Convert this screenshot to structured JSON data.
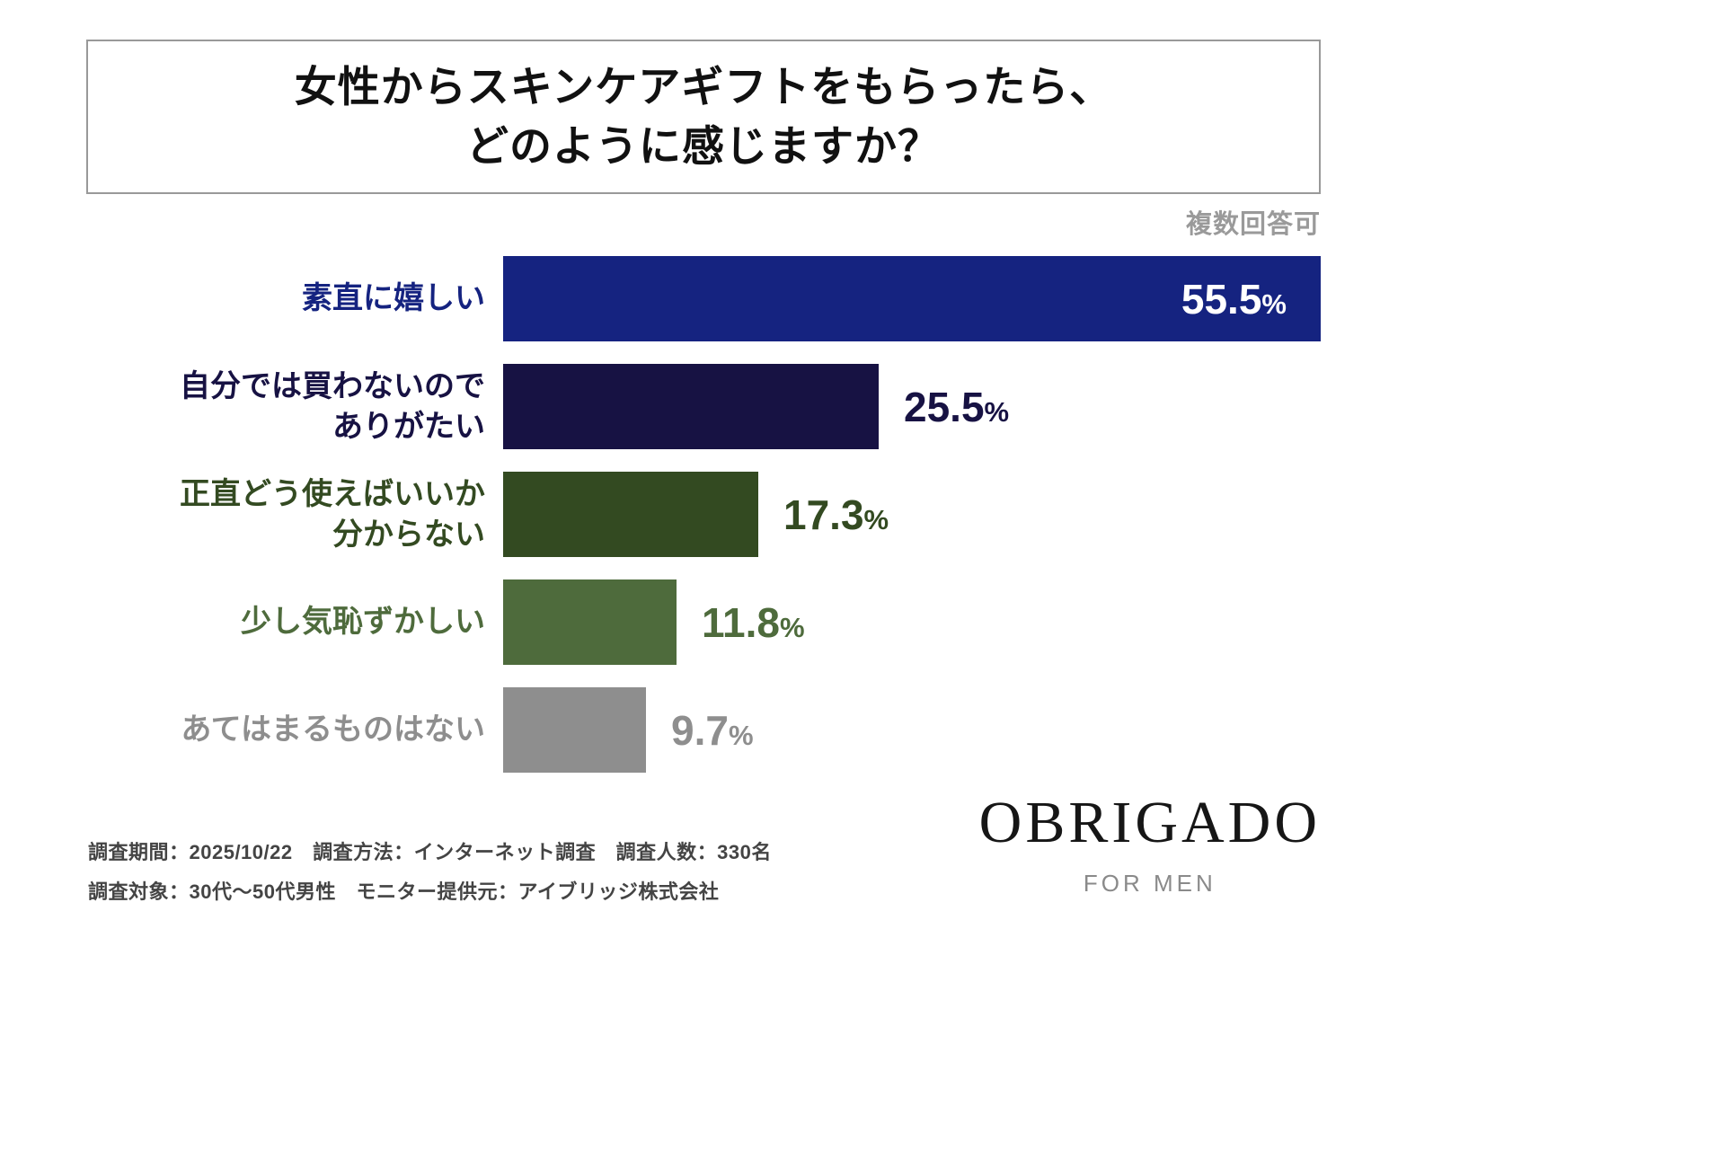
{
  "title": {
    "line1": "女性からスキンケアギフトをもらったら、",
    "line2": "どのように感じますか？"
  },
  "note": "複数回答可",
  "chart_data": {
    "type": "bar",
    "orientation": "horizontal",
    "title": "女性からスキンケアギフトをもらったら、どのように感じますか？",
    "categories": [
      "素直に嬉しい",
      "自分では買わないので\nありがたい",
      "正直どう使えばいいか\n分からない",
      "少し気恥ずかしい",
      "あてはまるものはない"
    ],
    "values": [
      55.5,
      25.5,
      17.3,
      11.8,
      9.7
    ],
    "value_suffix": "%",
    "colors": [
      "#152380",
      "#171243",
      "#334a21",
      "#4e6b3c",
      "#8e8e8e"
    ],
    "value_label_position": [
      "inside",
      "outside",
      "outside",
      "outside",
      "outside"
    ],
    "xlim": [
      0,
      55.5
    ],
    "grid": false,
    "legend": false,
    "annotation": "複数回答可"
  },
  "footer": {
    "line1": "調査期間：2025/10/22　調査方法：インターネット調査　調査人数：330名",
    "line2": "調査対象：30代〜50代男性　モニター提供元：アイブリッジ株式会社"
  },
  "logo": {
    "brand": "OBRIGADO",
    "sub": "FOR MEN"
  }
}
